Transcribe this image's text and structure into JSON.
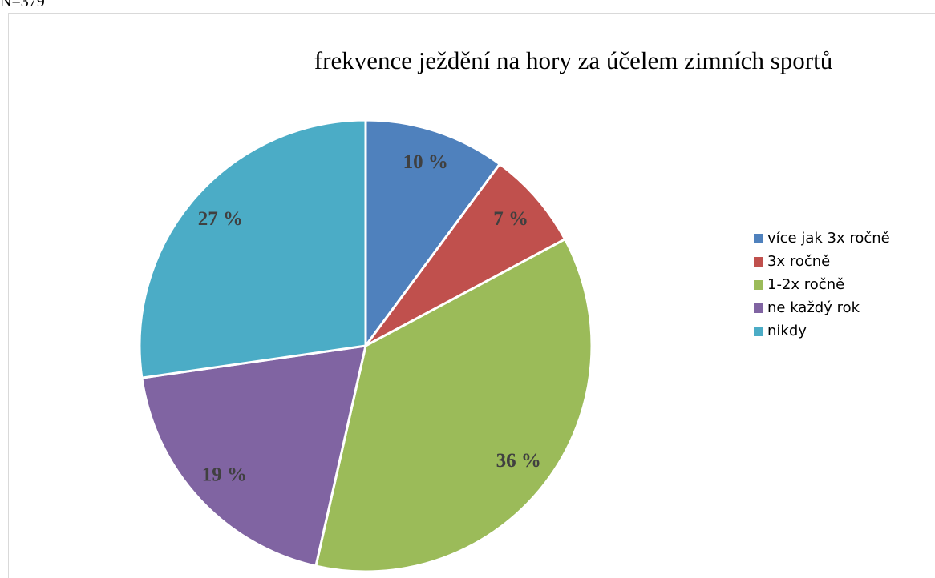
{
  "note": "N=379",
  "chart_data": {
    "type": "pie",
    "title": "frekvence ježdění na hory za účelem zimních sportů",
    "categories": [
      "více jak 3x ročně",
      "3x ročně",
      "1-2x ročně",
      "ne každý rok",
      "nikdy"
    ],
    "values": [
      10,
      7,
      36,
      19,
      27
    ],
    "value_labels": [
      "10 %",
      "7 %",
      "36 %",
      "19 %",
      "27 %"
    ],
    "colors": [
      "#4f81bd",
      "#c0504d",
      "#9bbb59",
      "#8064a2",
      "#4bacc6"
    ],
    "legend": "right"
  }
}
